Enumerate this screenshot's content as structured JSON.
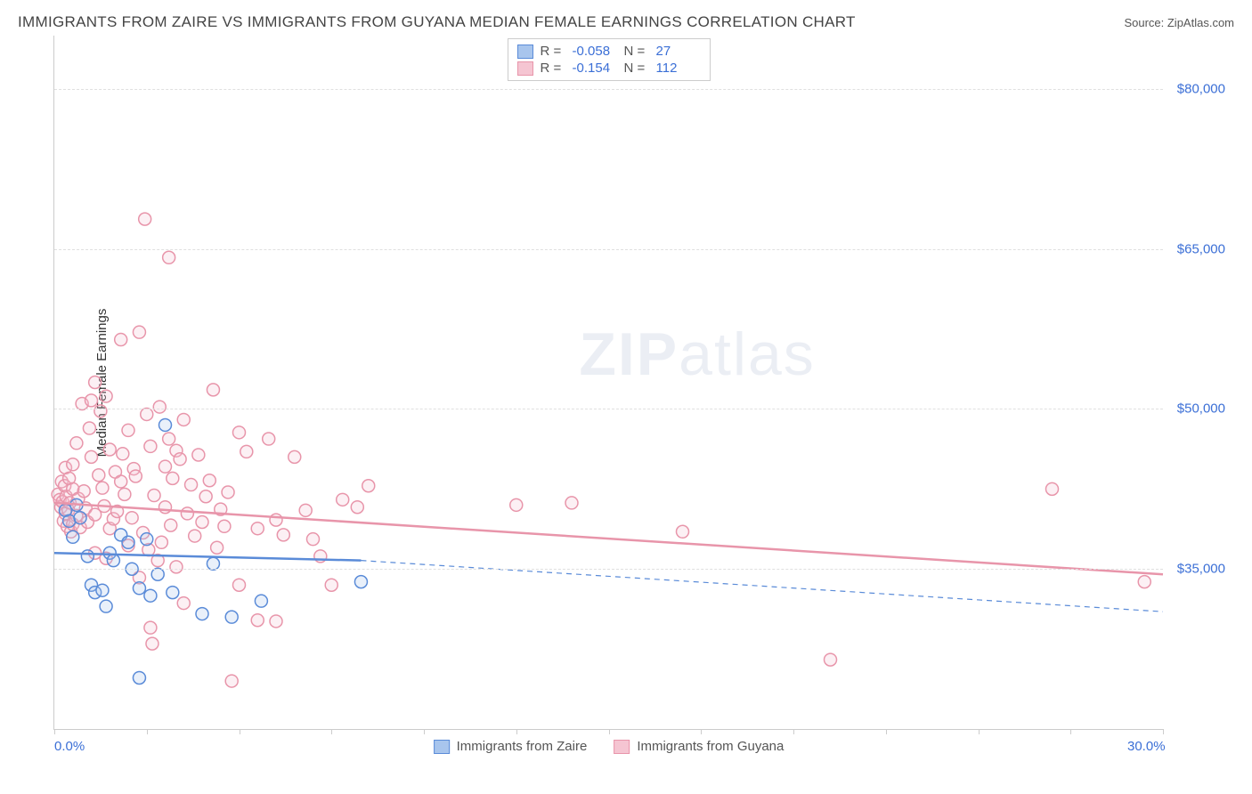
{
  "title": "IMMIGRANTS FROM ZAIRE VS IMMIGRANTS FROM GUYANA MEDIAN FEMALE EARNINGS CORRELATION CHART",
  "source": "Source: ZipAtlas.com",
  "y_axis_title": "Median Female Earnings",
  "watermark_zip": "ZIP",
  "watermark_atlas": "atlas",
  "chart": {
    "type": "scatter",
    "xlim": [
      0,
      30
    ],
    "ylim": [
      20000,
      85000
    ],
    "x_ticks_pct": [
      0,
      2.5,
      5,
      7.5,
      10,
      12.5,
      15,
      17.5,
      20,
      22.5,
      25,
      27.5,
      30
    ],
    "x_tick_labels": {
      "0": "0.0%",
      "30": "30.0%"
    },
    "y_gridlines": [
      35000,
      50000,
      65000,
      80000
    ],
    "y_tick_labels": {
      "35000": "$35,000",
      "50000": "$50,000",
      "65000": "$65,000",
      "80000": "$80,000"
    },
    "background_color": "#ffffff",
    "grid_color": "#e0e0e0",
    "axis_color": "#cccccc",
    "marker_radius": 7,
    "marker_stroke_width": 1.5,
    "marker_fill_opacity": 0.25,
    "series": [
      {
        "name": "Immigrants from Zaire",
        "color_stroke": "#5a8bd8",
        "color_fill": "#a8c5ed",
        "R": "-0.058",
        "N": "27",
        "trend": {
          "x1": 0,
          "y1": 36500,
          "x2": 8.3,
          "y2": 35800,
          "dash_x2": 30,
          "dash_y2": 31000,
          "width": 2.5
        },
        "points": [
          [
            0.3,
            40500
          ],
          [
            0.4,
            39500
          ],
          [
            0.5,
            38000
          ],
          [
            0.6,
            41000
          ],
          [
            0.7,
            39800
          ],
          [
            0.9,
            36200
          ],
          [
            1.0,
            33500
          ],
          [
            1.1,
            32800
          ],
          [
            1.3,
            33000
          ],
          [
            1.5,
            36500
          ],
          [
            1.6,
            35800
          ],
          [
            1.4,
            31500
          ],
          [
            1.8,
            38200
          ],
          [
            2.0,
            37500
          ],
          [
            2.1,
            35000
          ],
          [
            2.3,
            33200
          ],
          [
            2.3,
            24800
          ],
          [
            2.5,
            37800
          ],
          [
            2.6,
            32500
          ],
          [
            2.8,
            34500
          ],
          [
            3.0,
            48500
          ],
          [
            3.2,
            32800
          ],
          [
            4.0,
            30800
          ],
          [
            4.3,
            35500
          ],
          [
            4.8,
            30500
          ],
          [
            5.6,
            32000
          ],
          [
            8.3,
            33800
          ]
        ]
      },
      {
        "name": "Immigrants from Guyana",
        "color_stroke": "#e895aa",
        "color_fill": "#f5c5d2",
        "R": "-0.154",
        "N": "112",
        "trend": {
          "x1": 0,
          "y1": 41200,
          "x2": 30,
          "y2": 34500,
          "dash_x2": null,
          "dash_y2": null,
          "width": 2.5
        },
        "points": [
          [
            0.1,
            42000
          ],
          [
            0.15,
            41500
          ],
          [
            0.18,
            40800
          ],
          [
            0.2,
            43200
          ],
          [
            0.22,
            41300
          ],
          [
            0.25,
            39500
          ],
          [
            0.28,
            42800
          ],
          [
            0.3,
            40200
          ],
          [
            0.3,
            44500
          ],
          [
            0.32,
            41800
          ],
          [
            0.35,
            39000
          ],
          [
            0.38,
            40500
          ],
          [
            0.4,
            43500
          ],
          [
            0.42,
            41200
          ],
          [
            0.45,
            38500
          ],
          [
            0.5,
            42500
          ],
          [
            0.5,
            44800
          ],
          [
            0.5,
            39200
          ],
          [
            0.6,
            46800
          ],
          [
            0.6,
            40000
          ],
          [
            0.65,
            41600
          ],
          [
            0.7,
            38900
          ],
          [
            0.75,
            50500
          ],
          [
            0.8,
            42300
          ],
          [
            0.85,
            40700
          ],
          [
            0.9,
            39400
          ],
          [
            0.95,
            48200
          ],
          [
            1.0,
            45500
          ],
          [
            1.0,
            50800
          ],
          [
            1.1,
            52500
          ],
          [
            1.1,
            40100
          ],
          [
            1.1,
            36500
          ],
          [
            1.2,
            43800
          ],
          [
            1.25,
            49800
          ],
          [
            1.3,
            42600
          ],
          [
            1.35,
            40900
          ],
          [
            1.4,
            51200
          ],
          [
            1.4,
            36000
          ],
          [
            1.5,
            46200
          ],
          [
            1.5,
            38800
          ],
          [
            1.6,
            39700
          ],
          [
            1.65,
            44100
          ],
          [
            1.7,
            40400
          ],
          [
            1.8,
            56500
          ],
          [
            1.8,
            43200
          ],
          [
            1.85,
            45800
          ],
          [
            1.9,
            42000
          ],
          [
            2.0,
            37200
          ],
          [
            2.0,
            48000
          ],
          [
            2.1,
            39800
          ],
          [
            2.15,
            44400
          ],
          [
            2.2,
            43700
          ],
          [
            2.3,
            34200
          ],
          [
            2.3,
            57200
          ],
          [
            2.4,
            38400
          ],
          [
            2.45,
            67800
          ],
          [
            2.5,
            49500
          ],
          [
            2.55,
            36800
          ],
          [
            2.6,
            46500
          ],
          [
            2.6,
            29500
          ],
          [
            2.65,
            28000
          ],
          [
            2.7,
            41900
          ],
          [
            2.8,
            35800
          ],
          [
            2.85,
            50200
          ],
          [
            2.9,
            37500
          ],
          [
            3.0,
            40800
          ],
          [
            3.0,
            44600
          ],
          [
            3.1,
            47200
          ],
          [
            3.1,
            64200
          ],
          [
            3.15,
            39100
          ],
          [
            3.2,
            43500
          ],
          [
            3.3,
            46100
          ],
          [
            3.3,
            35200
          ],
          [
            3.4,
            45300
          ],
          [
            3.5,
            49000
          ],
          [
            3.5,
            31800
          ],
          [
            3.6,
            40200
          ],
          [
            3.7,
            42900
          ],
          [
            3.8,
            38100
          ],
          [
            3.9,
            45700
          ],
          [
            4.0,
            39400
          ],
          [
            4.1,
            41800
          ],
          [
            4.2,
            43300
          ],
          [
            4.3,
            51800
          ],
          [
            4.4,
            37000
          ],
          [
            4.5,
            40600
          ],
          [
            4.6,
            39000
          ],
          [
            4.7,
            42200
          ],
          [
            4.8,
            24500
          ],
          [
            5.0,
            47800
          ],
          [
            5.0,
            33500
          ],
          [
            5.2,
            46000
          ],
          [
            5.5,
            38800
          ],
          [
            5.5,
            30200
          ],
          [
            5.8,
            47200
          ],
          [
            6.0,
            39600
          ],
          [
            6.0,
            30100
          ],
          [
            6.2,
            38200
          ],
          [
            6.5,
            45500
          ],
          [
            6.8,
            40500
          ],
          [
            7.0,
            37800
          ],
          [
            7.2,
            36200
          ],
          [
            7.5,
            33500
          ],
          [
            7.8,
            41500
          ],
          [
            8.2,
            40800
          ],
          [
            8.5,
            42800
          ],
          [
            12.5,
            41000
          ],
          [
            14.0,
            41200
          ],
          [
            17.0,
            38500
          ],
          [
            21.0,
            26500
          ],
          [
            27.0,
            42500
          ],
          [
            29.5,
            33800
          ]
        ]
      }
    ]
  },
  "legend_top": {
    "R_label": "R =",
    "N_label": "N ="
  }
}
